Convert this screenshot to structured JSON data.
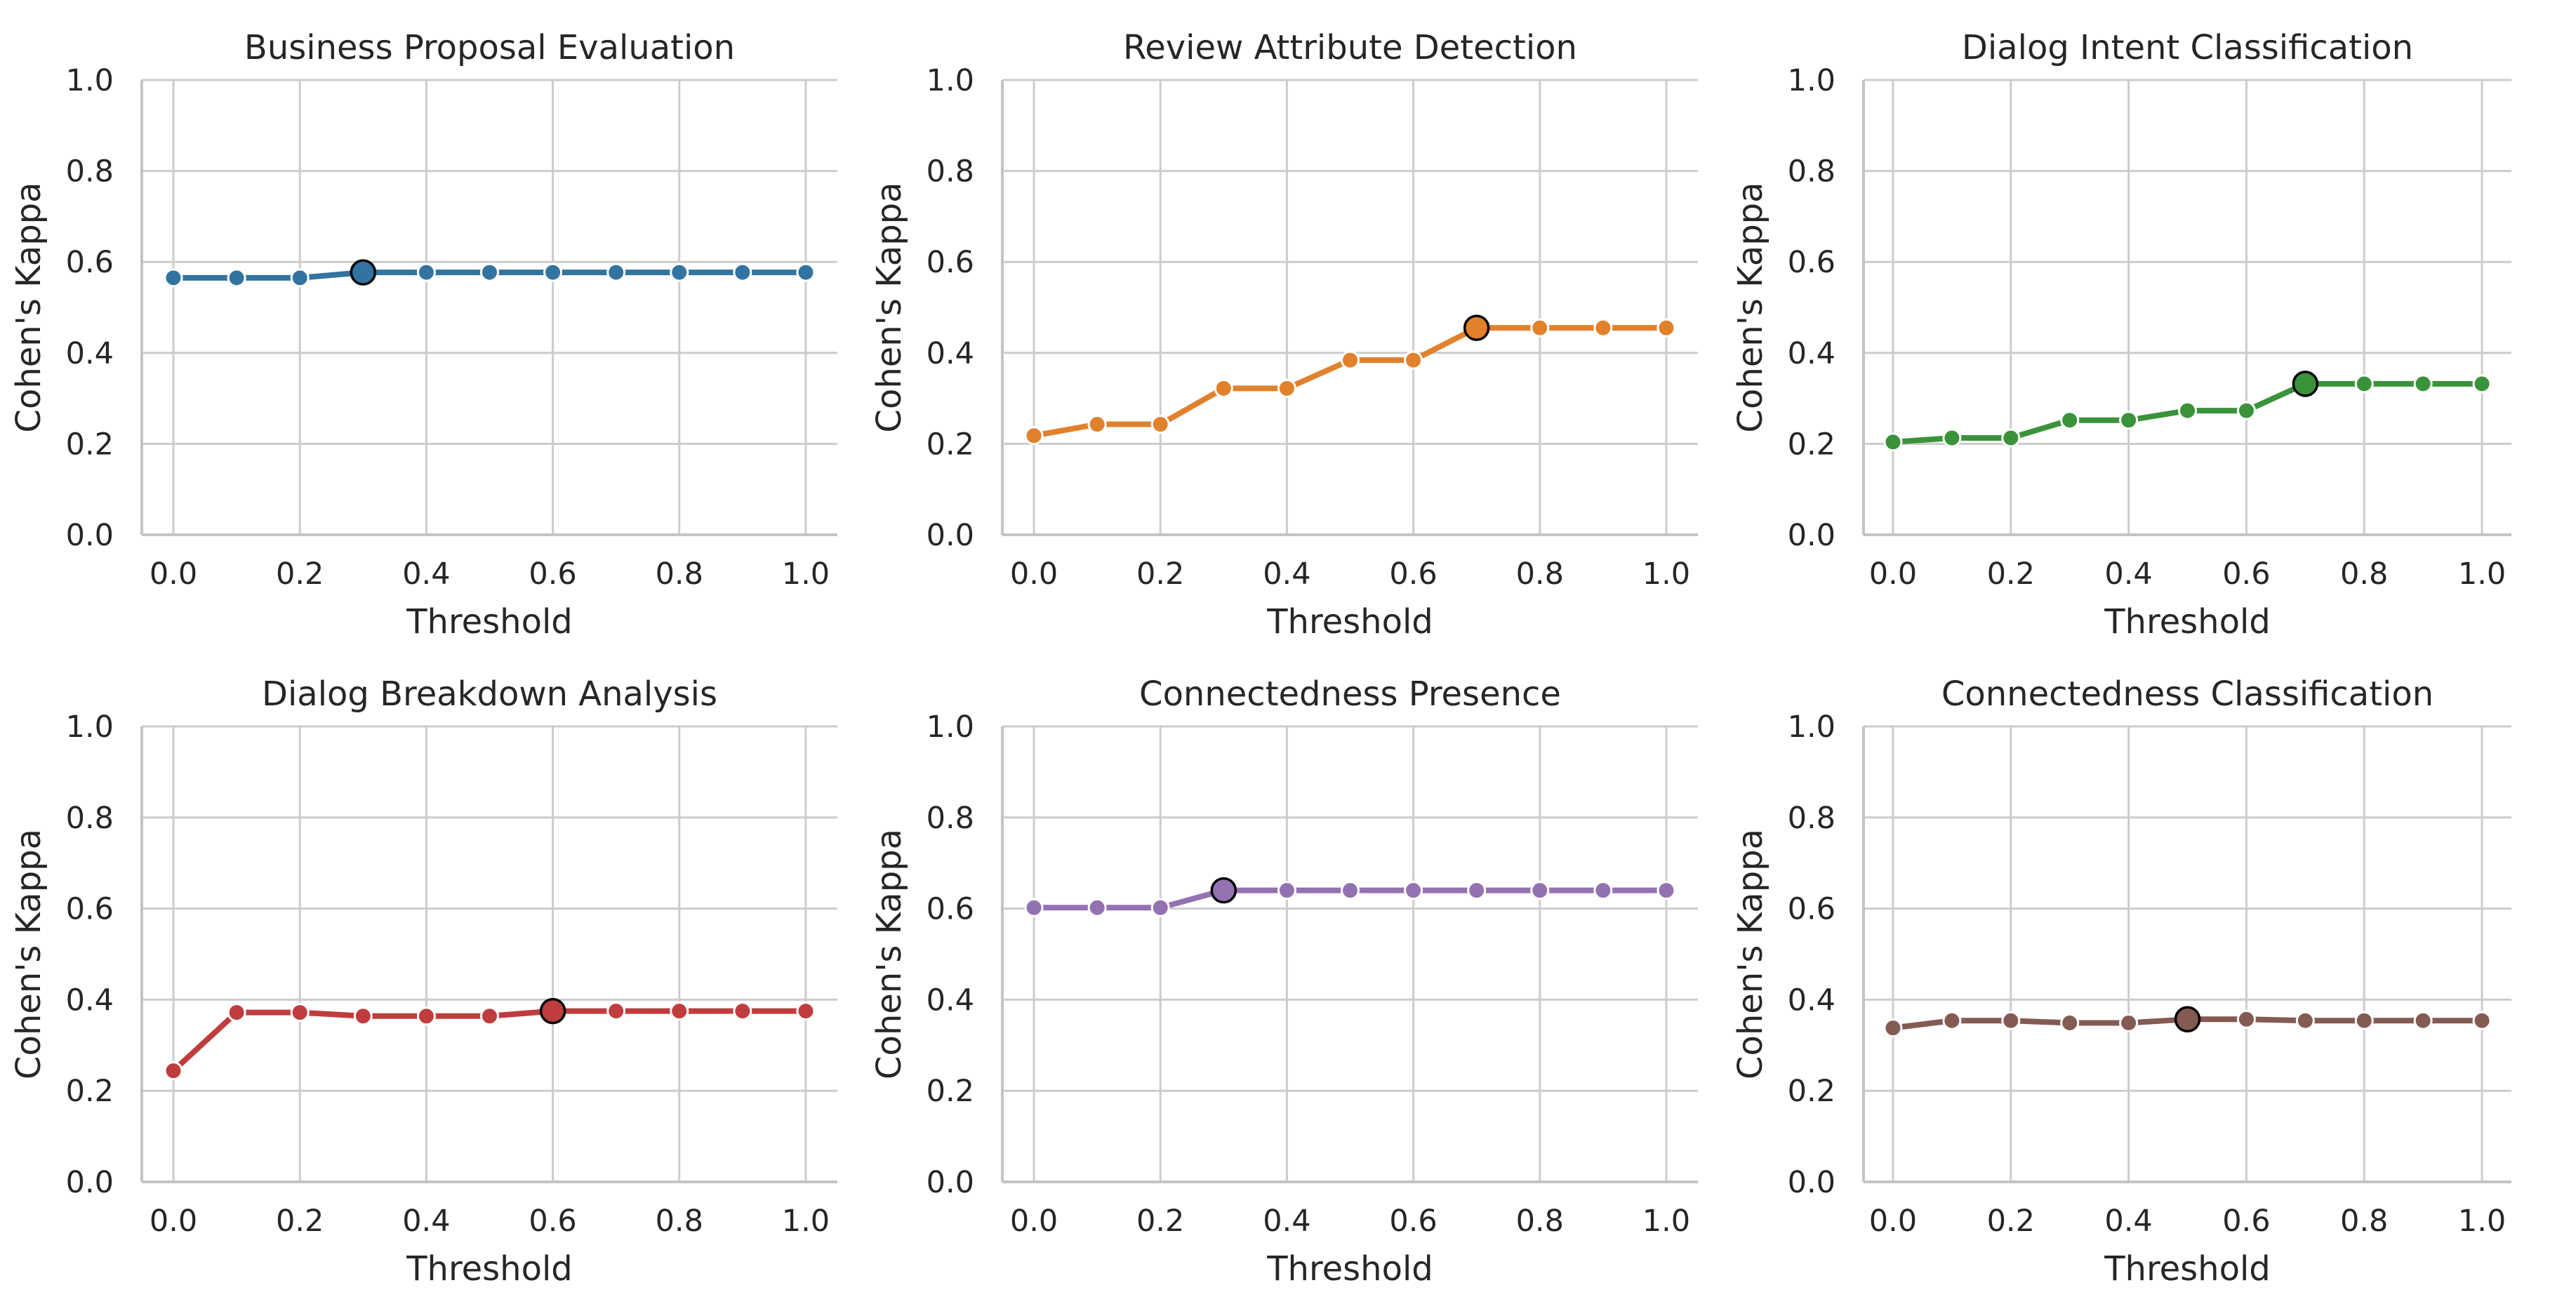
{
  "chart_data": [
    {
      "type": "line",
      "title": "Business Proposal Evaluation",
      "xlabel": "Threshold",
      "ylabel": "Cohen's Kappa",
      "x": [
        0.0,
        0.1,
        0.2,
        0.3,
        0.4,
        0.5,
        0.6,
        0.7,
        0.8,
        0.9,
        1.0
      ],
      "values": [
        0.565,
        0.565,
        0.565,
        0.577,
        0.577,
        0.577,
        0.577,
        0.577,
        0.577,
        0.577,
        0.577
      ],
      "best_index": 3,
      "color": "#3274a1",
      "xlim": [
        -0.05,
        1.05
      ],
      "ylim": [
        0.0,
        1.0
      ],
      "xticks": [
        "0.0",
        "0.2",
        "0.4",
        "0.6",
        "0.8",
        "1.0"
      ],
      "yticks": [
        "0.0",
        "0.2",
        "0.4",
        "0.6",
        "0.8",
        "1.0"
      ],
      "grid": true
    },
    {
      "type": "line",
      "title": "Review Attribute Detection",
      "xlabel": "Threshold",
      "ylabel": "Cohen's Kappa",
      "x": [
        0.0,
        0.1,
        0.2,
        0.3,
        0.4,
        0.5,
        0.6,
        0.7,
        0.8,
        0.9,
        1.0
      ],
      "values": [
        0.218,
        0.243,
        0.243,
        0.322,
        0.322,
        0.384,
        0.384,
        0.455,
        0.455,
        0.455,
        0.455
      ],
      "best_index": 7,
      "color": "#e1812c",
      "xlim": [
        -0.05,
        1.05
      ],
      "ylim": [
        0.0,
        1.0
      ],
      "xticks": [
        "0.0",
        "0.2",
        "0.4",
        "0.6",
        "0.8",
        "1.0"
      ],
      "yticks": [
        "0.0",
        "0.2",
        "0.4",
        "0.6",
        "0.8",
        "1.0"
      ],
      "grid": true
    },
    {
      "type": "line",
      "title": "Dialog Intent Classification",
      "xlabel": "Threshold",
      "ylabel": "Cohen's Kappa",
      "x": [
        0.0,
        0.1,
        0.2,
        0.3,
        0.4,
        0.5,
        0.6,
        0.7,
        0.8,
        0.9,
        1.0
      ],
      "values": [
        0.204,
        0.213,
        0.213,
        0.252,
        0.252,
        0.273,
        0.273,
        0.332,
        0.332,
        0.332,
        0.332
      ],
      "best_index": 7,
      "color": "#3a923a",
      "xlim": [
        -0.05,
        1.05
      ],
      "ylim": [
        0.0,
        1.0
      ],
      "xticks": [
        "0.0",
        "0.2",
        "0.4",
        "0.6",
        "0.8",
        "1.0"
      ],
      "yticks": [
        "0.0",
        "0.2",
        "0.4",
        "0.6",
        "0.8",
        "1.0"
      ],
      "grid": true
    },
    {
      "type": "line",
      "title": "Dialog Breakdown Analysis",
      "xlabel": "Threshold",
      "ylabel": "Cohen's Kappa",
      "x": [
        0.0,
        0.1,
        0.2,
        0.3,
        0.4,
        0.5,
        0.6,
        0.7,
        0.8,
        0.9,
        1.0
      ],
      "values": [
        0.244,
        0.372,
        0.372,
        0.364,
        0.364,
        0.364,
        0.375,
        0.375,
        0.375,
        0.375,
        0.375
      ],
      "best_index": 6,
      "color": "#c03d3e",
      "xlim": [
        -0.05,
        1.05
      ],
      "ylim": [
        0.0,
        1.0
      ],
      "xticks": [
        "0.0",
        "0.2",
        "0.4",
        "0.6",
        "0.8",
        "1.0"
      ],
      "yticks": [
        "0.0",
        "0.2",
        "0.4",
        "0.6",
        "0.8",
        "1.0"
      ],
      "grid": true
    },
    {
      "type": "line",
      "title": "Connectedness Presence",
      "xlabel": "Threshold",
      "ylabel": "Cohen's Kappa",
      "x": [
        0.0,
        0.1,
        0.2,
        0.3,
        0.4,
        0.5,
        0.6,
        0.7,
        0.8,
        0.9,
        1.0
      ],
      "values": [
        0.602,
        0.602,
        0.602,
        0.64,
        0.64,
        0.64,
        0.64,
        0.64,
        0.64,
        0.64,
        0.64
      ],
      "best_index": 3,
      "color": "#9372b2",
      "xlim": [
        -0.05,
        1.05
      ],
      "ylim": [
        0.0,
        1.0
      ],
      "xticks": [
        "0.0",
        "0.2",
        "0.4",
        "0.6",
        "0.8",
        "1.0"
      ],
      "yticks": [
        "0.0",
        "0.2",
        "0.4",
        "0.6",
        "0.8",
        "1.0"
      ],
      "grid": true
    },
    {
      "type": "line",
      "title": "Connectedness Classification",
      "xlabel": "Threshold",
      "ylabel": "Cohen's Kappa",
      "x": [
        0.0,
        0.1,
        0.2,
        0.3,
        0.4,
        0.5,
        0.6,
        0.7,
        0.8,
        0.9,
        1.0
      ],
      "values": [
        0.338,
        0.354,
        0.354,
        0.349,
        0.349,
        0.357,
        0.357,
        0.354,
        0.354,
        0.354,
        0.354
      ],
      "best_index": 5,
      "color": "#845b53",
      "xlim": [
        -0.05,
        1.05
      ],
      "ylim": [
        0.0,
        1.0
      ],
      "xticks": [
        "0.0",
        "0.2",
        "0.4",
        "0.6",
        "0.8",
        "1.0"
      ],
      "yticks": [
        "0.0",
        "0.2",
        "0.4",
        "0.6",
        "0.8",
        "1.0"
      ],
      "grid": true
    }
  ]
}
